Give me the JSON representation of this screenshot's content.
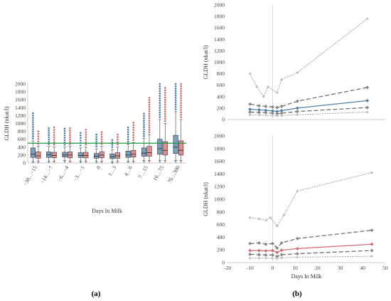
{
  "chart_data": [
    {
      "type": "boxplot",
      "panel_label": "(a)",
      "ylabel": "GLDH (nkat/l)",
      "xlabel": "Days In Milk",
      "ylim": [
        0,
        2000
      ],
      "yticks": [
        "0",
        "200",
        "400",
        "600",
        "800",
        "1000",
        "1200",
        "1400",
        "1600",
        "1800",
        "2000"
      ],
      "categories": [
        "−30…−15",
        "−14…−7",
        "−6…−4",
        "−3…−1",
        "0",
        "1…3",
        "4…6",
        "7…15",
        "16…75",
        "76…300"
      ],
      "reference_line": 500,
      "series": [
        {
          "color": "#4f7fa6",
          "boxes": [
            {
              "min": 40,
              "q1": 140,
              "median": 220,
              "q3": 380,
              "max": 560,
              "outliers_max": 1260
            },
            {
              "min": 50,
              "q1": 140,
              "median": 210,
              "q3": 280,
              "max": 420,
              "outliers_max": 880
            },
            {
              "min": 60,
              "q1": 150,
              "median": 200,
              "q3": 270,
              "max": 400,
              "outliers_max": 870
            },
            {
              "min": 50,
              "q1": 140,
              "median": 190,
              "q3": 260,
              "max": 380,
              "outliers_max": 760
            },
            {
              "min": 40,
              "q1": 120,
              "median": 170,
              "q3": 240,
              "max": 360,
              "outliers_max": 720
            },
            {
              "min": 30,
              "q1": 110,
              "median": 160,
              "q3": 230,
              "max": 340,
              "outliers_max": 580
            },
            {
              "min": 50,
              "q1": 140,
              "median": 200,
              "q3": 300,
              "max": 480,
              "outliers_max": 900
            },
            {
              "min": 60,
              "q1": 170,
              "median": 250,
              "q3": 380,
              "max": 620,
              "outliers_max": 1250
            },
            {
              "min": 60,
              "q1": 220,
              "median": 360,
              "q3": 600,
              "max": 1100,
              "outliers_max": 2000
            },
            {
              "min": 60,
              "q1": 240,
              "median": 400,
              "q3": 700,
              "max": 1300,
              "outliers_max": 2000
            }
          ]
        },
        {
          "color": "#d46a6e",
          "boxes": [
            {
              "min": 40,
              "q1": 120,
              "median": 180,
              "q3": 280,
              "max": 420,
              "outliers_max": 800
            },
            {
              "min": 50,
              "q1": 130,
              "median": 190,
              "q3": 270,
              "max": 400,
              "outliers_max": 900
            },
            {
              "min": 50,
              "q1": 130,
              "median": 200,
              "q3": 280,
              "max": 420,
              "outliers_max": 880
            },
            {
              "min": 50,
              "q1": 130,
              "median": 190,
              "q3": 270,
              "max": 400,
              "outliers_max": 840
            },
            {
              "min": 40,
              "q1": 130,
              "median": 200,
              "q3": 280,
              "max": 420,
              "outliers_max": 780
            },
            {
              "min": 40,
              "q1": 120,
              "median": 180,
              "q3": 260,
              "max": 400,
              "outliers_max": 720
            },
            {
              "min": 50,
              "q1": 150,
              "median": 220,
              "q3": 320,
              "max": 520,
              "outliers_max": 1020
            },
            {
              "min": 60,
              "q1": 170,
              "median": 260,
              "q3": 420,
              "max": 720,
              "outliers_max": 1650
            },
            {
              "min": 60,
              "q1": 200,
              "median": 320,
              "q3": 540,
              "max": 1000,
              "outliers_max": 1900
            },
            {
              "min": 60,
              "q1": 200,
              "median": 320,
              "q3": 560,
              "max": 1100,
              "outliers_max": 2000
            }
          ]
        }
      ]
    },
    {
      "type": "line",
      "panel_label": "(b)",
      "subplot": "top",
      "ylabel": "GLDH (nkat/l)",
      "ylim": [
        0,
        2000
      ],
      "yticks": [
        "0",
        "200",
        "400",
        "600",
        "800",
        "1000",
        "1200",
        "1400",
        "1600",
        "1800",
        "2000"
      ],
      "xlim": [
        -20,
        50
      ],
      "series": [
        {
          "style": "dotted",
          "color": "#9e9e9e",
          "points": [
            [
              -10,
              800
            ],
            [
              -7,
              570
            ],
            [
              -4,
              400
            ],
            [
              -2,
              570
            ],
            [
              2,
              470
            ],
            [
              4,
              700
            ],
            [
              11,
              820
            ],
            [
              42,
              1760
            ]
          ]
        },
        {
          "style": "dashed",
          "color": "#707070",
          "points": [
            [
              -10,
              270
            ],
            [
              -6,
              240
            ],
            [
              -3,
              230
            ],
            [
              0,
              220
            ],
            [
              2,
              210
            ],
            [
              4,
              230
            ],
            [
              11,
              320
            ],
            [
              42,
              560
            ]
          ]
        },
        {
          "style": "solid",
          "color": "#4f7fa6",
          "points": [
            [
              -10,
              180
            ],
            [
              -6,
              170
            ],
            [
              -3,
              160
            ],
            [
              0,
              150
            ],
            [
              2,
              140
            ],
            [
              4,
              155
            ],
            [
              11,
              200
            ],
            [
              42,
              330
            ]
          ]
        },
        {
          "style": "dashed",
          "color": "#707070",
          "points": [
            [
              -10,
              130
            ],
            [
              -6,
              125
            ],
            [
              -3,
              120
            ],
            [
              0,
              110
            ],
            [
              2,
              100
            ],
            [
              4,
              110
            ],
            [
              11,
              140
            ],
            [
              42,
              210
            ]
          ]
        },
        {
          "style": "dotted",
          "color": "#9e9e9e",
          "points": [
            [
              -10,
              80
            ],
            [
              -6,
              80
            ],
            [
              -3,
              75
            ],
            [
              0,
              70
            ],
            [
              2,
              65
            ],
            [
              4,
              70
            ],
            [
              11,
              85
            ],
            [
              42,
              130
            ]
          ]
        }
      ]
    },
    {
      "type": "line",
      "subplot": "bottom",
      "ylabel": "GLDH (nkat/l)",
      "xlabel": "Days In Milk",
      "ylim": [
        0,
        2000
      ],
      "yticks": [
        "0",
        "200",
        "400",
        "600",
        "800",
        "1000",
        "1200",
        "1400",
        "1600",
        "1800",
        "2000"
      ],
      "xlim": [
        -20,
        50
      ],
      "xticks": [
        "-20",
        "-10",
        "0",
        "10",
        "20",
        "30",
        "40",
        "50"
      ],
      "series": [
        {
          "style": "dotted",
          "color": "#9e9e9e",
          "points": [
            [
              -10,
              710
            ],
            [
              -6,
              690
            ],
            [
              -3,
              670
            ],
            [
              -1,
              710
            ],
            [
              2,
              580
            ],
            [
              5,
              750
            ],
            [
              11,
              1130
            ],
            [
              44,
              1420
            ]
          ]
        },
        {
          "style": "dashed",
          "color": "#707070",
          "points": [
            [
              -10,
              300
            ],
            [
              -6,
              310
            ],
            [
              -3,
              290
            ],
            [
              0,
              300
            ],
            [
              2,
              230
            ],
            [
              4,
              310
            ],
            [
              11,
              380
            ],
            [
              44,
              510
            ]
          ]
        },
        {
          "style": "solid",
          "color": "#d46a6e",
          "points": [
            [
              -10,
              190
            ],
            [
              -6,
              190
            ],
            [
              -3,
              185
            ],
            [
              0,
              190
            ],
            [
              2,
              160
            ],
            [
              4,
              195
            ],
            [
              11,
              220
            ],
            [
              44,
              290
            ]
          ]
        },
        {
          "style": "dashed",
          "color": "#707070",
          "points": [
            [
              -10,
              130
            ],
            [
              -6,
              125
            ],
            [
              -3,
              120
            ],
            [
              0,
              120
            ],
            [
              2,
              95
            ],
            [
              4,
              125
            ],
            [
              11,
              140
            ],
            [
              44,
              190
            ]
          ]
        },
        {
          "style": "dotted",
          "color": "#9e9e9e",
          "points": [
            [
              -10,
              70
            ],
            [
              -6,
              70
            ],
            [
              -3,
              70
            ],
            [
              0,
              70
            ],
            [
              2,
              65
            ],
            [
              4,
              75
            ],
            [
              11,
              85
            ],
            [
              44,
              100
            ]
          ]
        }
      ]
    }
  ]
}
